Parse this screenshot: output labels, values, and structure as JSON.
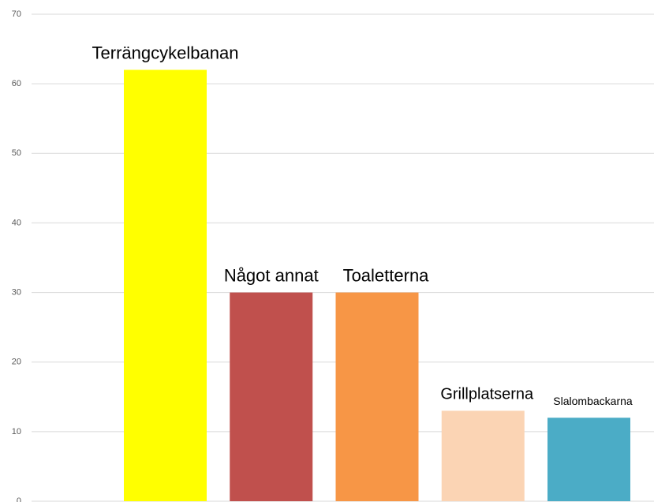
{
  "chart_data": {
    "type": "bar",
    "categories": [
      "Terrängcykelbanan",
      "Något annat",
      "Toaletterna",
      "Grillplatserna",
      "Slalombackarna"
    ],
    "values": [
      62,
      30,
      30,
      13,
      12
    ],
    "colors": [
      "#ffff00",
      "#c0504d",
      "#f79646",
      "#fbd4b4",
      "#4bacc6"
    ],
    "ylim": [
      0,
      70
    ],
    "yticks": [
      0,
      10,
      20,
      30,
      40,
      50,
      60,
      70
    ],
    "grid": true
  }
}
